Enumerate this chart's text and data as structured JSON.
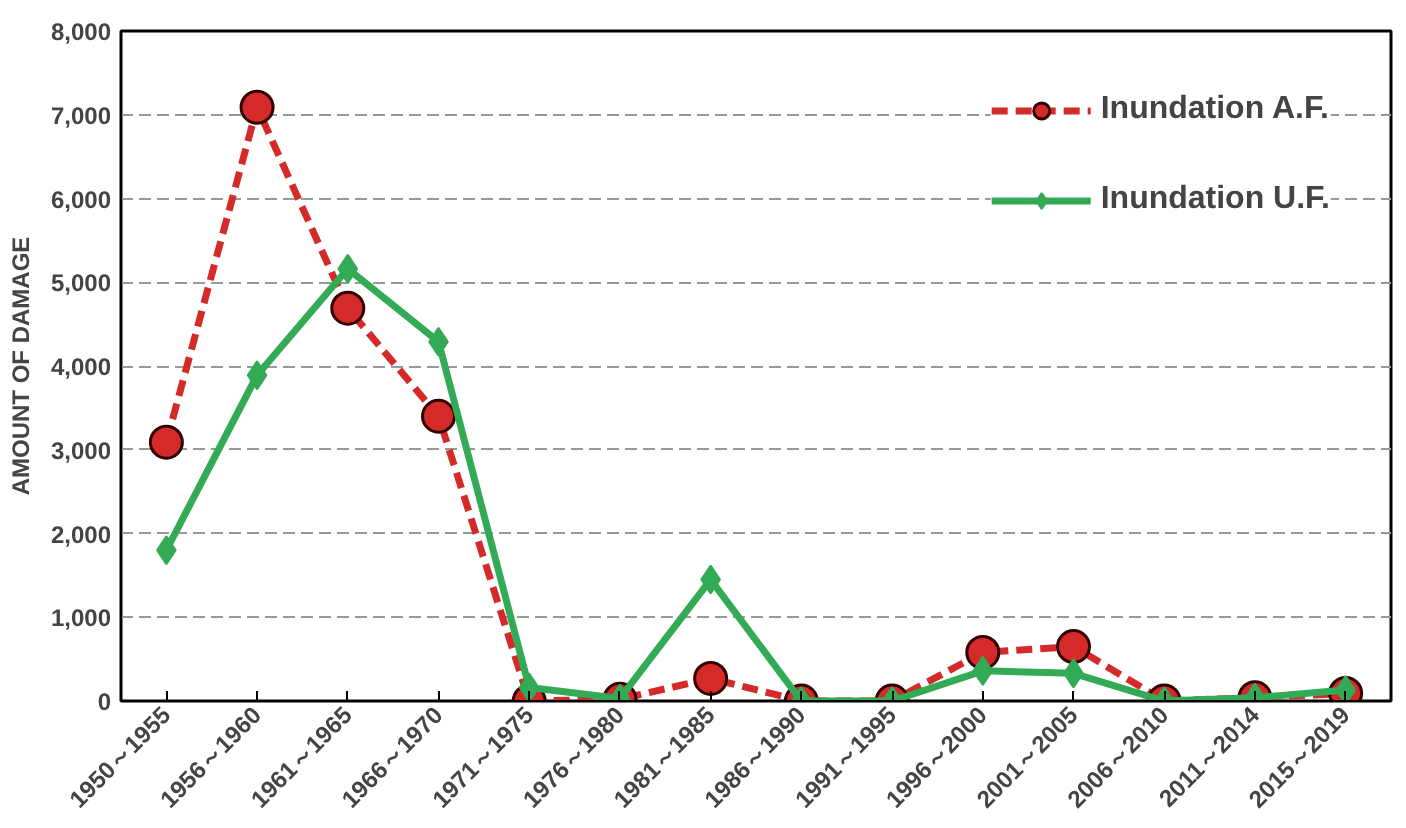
{
  "chart_data": {
    "type": "line",
    "ylabel": "AMOUNT OF DAMAGE",
    "categories": [
      "1950～1955",
      "1956～1960",
      "1961～1965",
      "1966～1970",
      "1971～1975",
      "1976～1980",
      "1981～1985",
      "1986～1990",
      "1991～1995",
      "1996～2000",
      "2001～2005",
      "2006～2010",
      "2011～2014",
      "2015～2019"
    ],
    "series": [
      {
        "name": "Inundation A.F.",
        "color": "#d42a2a",
        "marker": "circle",
        "line_style": "dashed",
        "values": [
          3090,
          7090,
          4690,
          3400,
          0,
          20,
          270,
          0,
          0,
          580,
          650,
          0,
          40,
          90
        ]
      },
      {
        "name": "Inundation U.F.",
        "color": "#33aa55",
        "marker": "diamond",
        "line_style": "solid",
        "values": [
          1800,
          3890,
          5160,
          4290,
          160,
          30,
          1450,
          0,
          0,
          360,
          330,
          0,
          40,
          130
        ]
      }
    ],
    "ylim": [
      0,
      8000
    ],
    "yticks": [
      {
        "value": 0,
        "label": "0"
      },
      {
        "value": 1000,
        "label": "1,000"
      },
      {
        "value": 2000,
        "label": "2,000"
      },
      {
        "value": 3000,
        "label": "3,000"
      },
      {
        "value": 4000,
        "label": "4,000"
      },
      {
        "value": 5000,
        "label": "5,000"
      },
      {
        "value": 6000,
        "label": "6,000"
      },
      {
        "value": 7000,
        "label": "7,000"
      },
      {
        "value": 8000,
        "label": "8,000"
      }
    ],
    "grid": "y",
    "legend": "top right"
  }
}
